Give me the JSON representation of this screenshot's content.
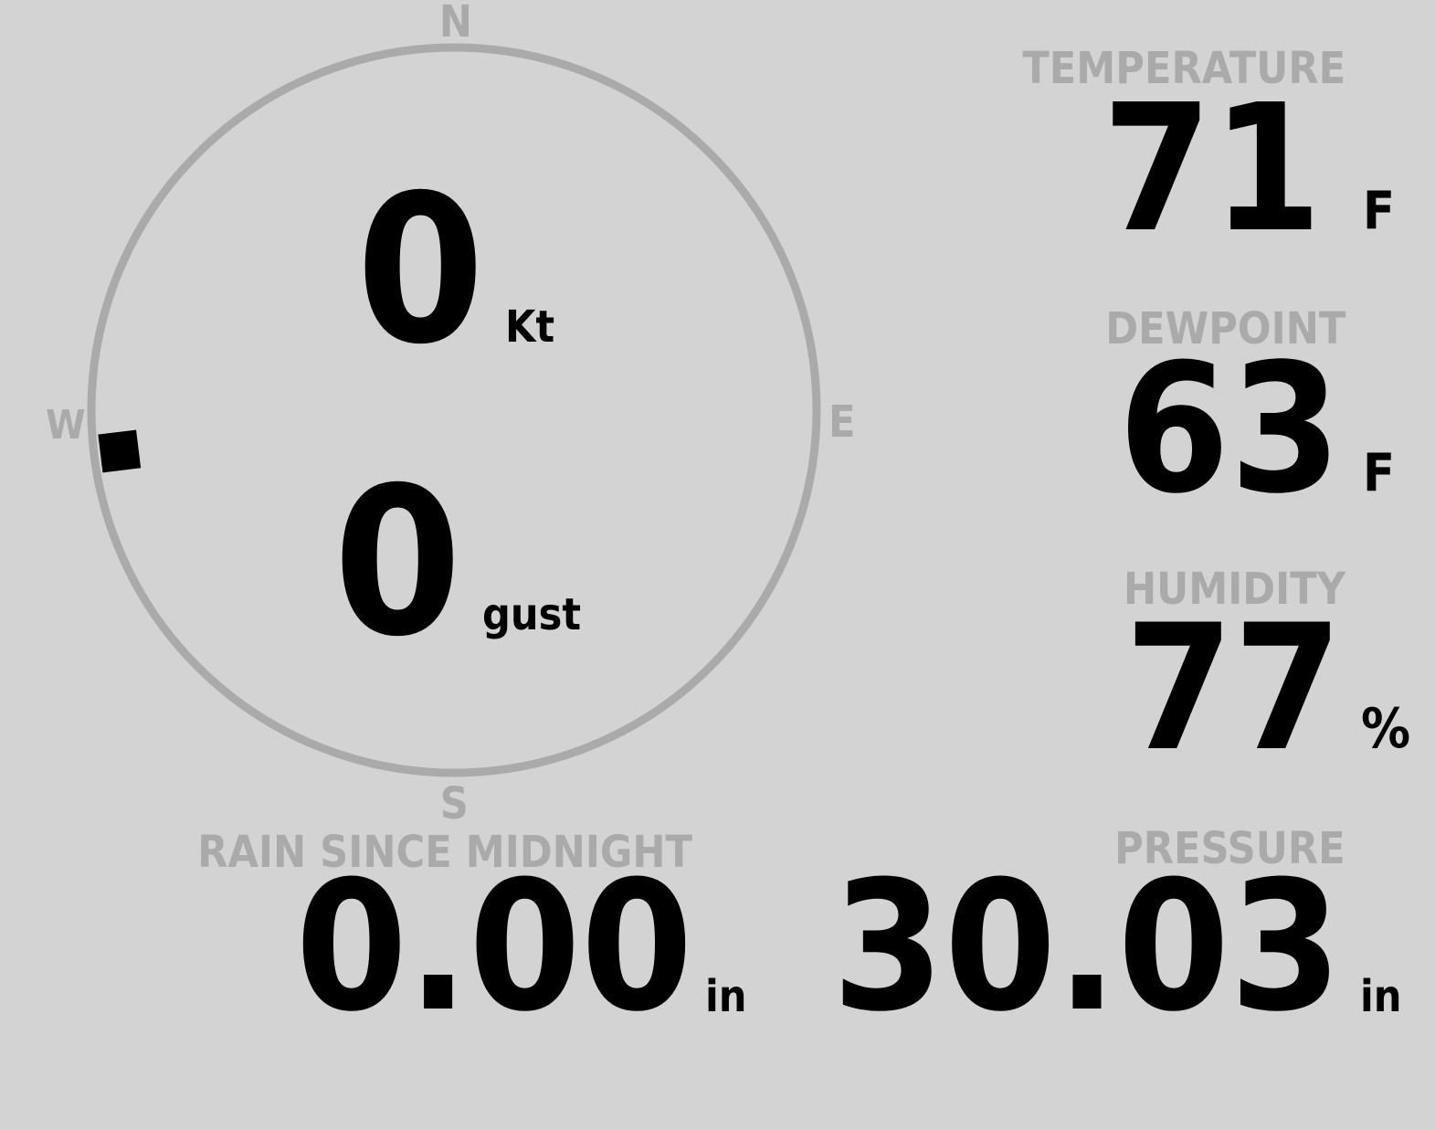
{
  "colors": {
    "background": "#d3d3d3",
    "label": "#aaaaaa",
    "value": "#000000",
    "dial": "#aaaaaa"
  },
  "wind": {
    "compass": {
      "north": "N",
      "south": "S",
      "east": "E",
      "west": "W"
    },
    "direction_deg": 263,
    "speed": "0",
    "speed_unit": "Kt",
    "gust": "0",
    "gust_unit": "gust"
  },
  "temperature": {
    "label": "TEMPERATURE",
    "value": "71",
    "unit": "F"
  },
  "dewpoint": {
    "label": "DEWPOINT",
    "value": "63",
    "unit": "F"
  },
  "humidity": {
    "label": "HUMIDITY",
    "value": "77",
    "unit": "%"
  },
  "rain": {
    "label": "RAIN SINCE MIDNIGHT",
    "value": "0.00",
    "unit": "in"
  },
  "pressure": {
    "label": "PRESSURE",
    "value": "30.03",
    "unit": "in"
  }
}
